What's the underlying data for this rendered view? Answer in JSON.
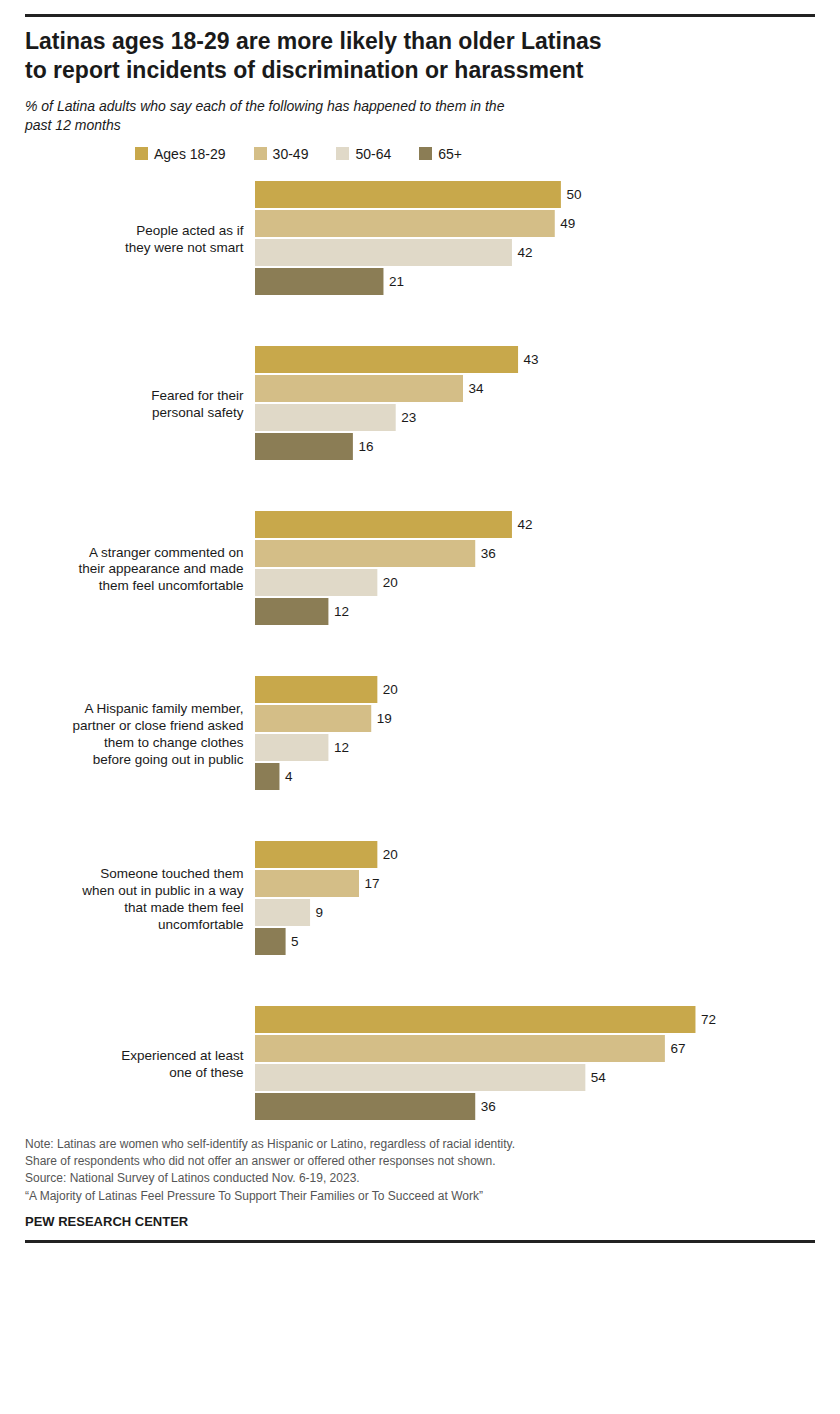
{
  "chart_data": {
    "type": "bar",
    "orientation": "horizontal",
    "title": "Latinas ages 18-29 are more likely than older Latinas\nto report incidents of discrimination or harassment",
    "subtitle": "% of Latina adults who say each of the following has happened to them in the\npast 12 months",
    "categories": [
      "People acted as if\nthey were not smart",
      "Feared for their\npersonal safety",
      "A stranger commented on\ntheir appearance and made\nthem feel uncomfortable",
      "A Hispanic family member,\npartner or close friend asked\nthem to change clothes\nbefore going out in public",
      "Someone touched them\nwhen out in public in a way\nthat made them feel\nuncomfortable",
      "Experienced at least\none of these"
    ],
    "series": [
      {
        "name": "Ages 18-29",
        "color": "#C8A84B",
        "values": [
          50,
          43,
          42,
          20,
          20,
          72
        ]
      },
      {
        "name": "30-49",
        "color": "#D4BE87",
        "values": [
          49,
          34,
          36,
          19,
          17,
          67
        ]
      },
      {
        "name": "50-64",
        "color": "#E0D9C8",
        "values": [
          42,
          23,
          20,
          12,
          9,
          54
        ]
      },
      {
        "name": "65+",
        "color": "#8B7D55",
        "values": [
          21,
          16,
          12,
          4,
          5,
          36
        ]
      }
    ],
    "xlim": [
      0,
      85
    ],
    "tick_labels": false,
    "grid": false,
    "legend": "top",
    "data_labels": true,
    "annotations": [
      "Note: Latinas are women who self-identify as Hispanic or Latino, regardless of racial identity.\nShare of respondents who did not offer an answer or offered other responses not shown.\nSource: National Survey of Latinos conducted Nov. 6-19, 2023.\n“A Majority of Latinas Feel Pressure To Support Their Families or To Succeed at Work”",
      "PEW RESEARCH CENTER"
    ]
  }
}
